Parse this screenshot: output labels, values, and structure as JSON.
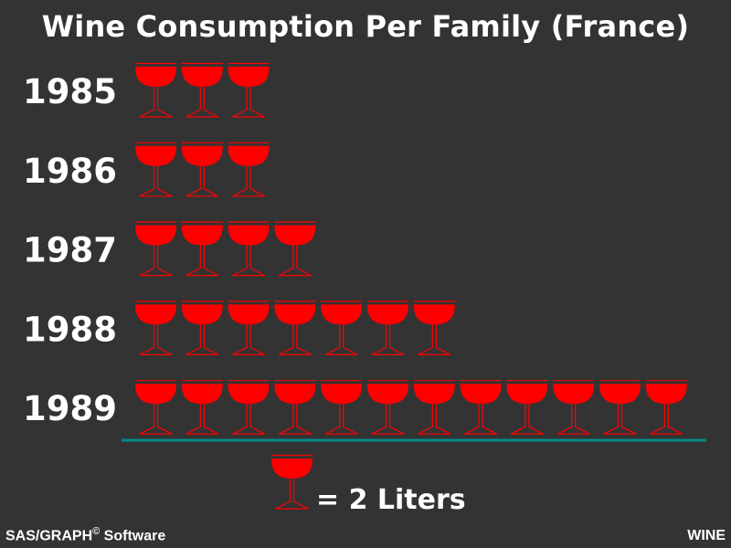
{
  "chart_data": {
    "type": "bar",
    "title": "Wine Consumption Per Family (France)",
    "categories": [
      "1985",
      "1986",
      "1987",
      "1988",
      "1989"
    ],
    "values": [
      6,
      6,
      8,
      14,
      24
    ],
    "unit_value": 2,
    "legend": {
      "symbol": "wine-glass",
      "prefix": "= ",
      "value": "2",
      "unit": "Liters",
      "text": "= 2 Liters"
    },
    "colors": {
      "background": "#333333",
      "glass": "#ff0000",
      "axis": "#008b8b",
      "text": "#ffffff"
    }
  },
  "footnote": {
    "left_main": "SAS/GRAPH",
    "left_sup": "©",
    "left_tail": " Software",
    "right": "WINE"
  }
}
